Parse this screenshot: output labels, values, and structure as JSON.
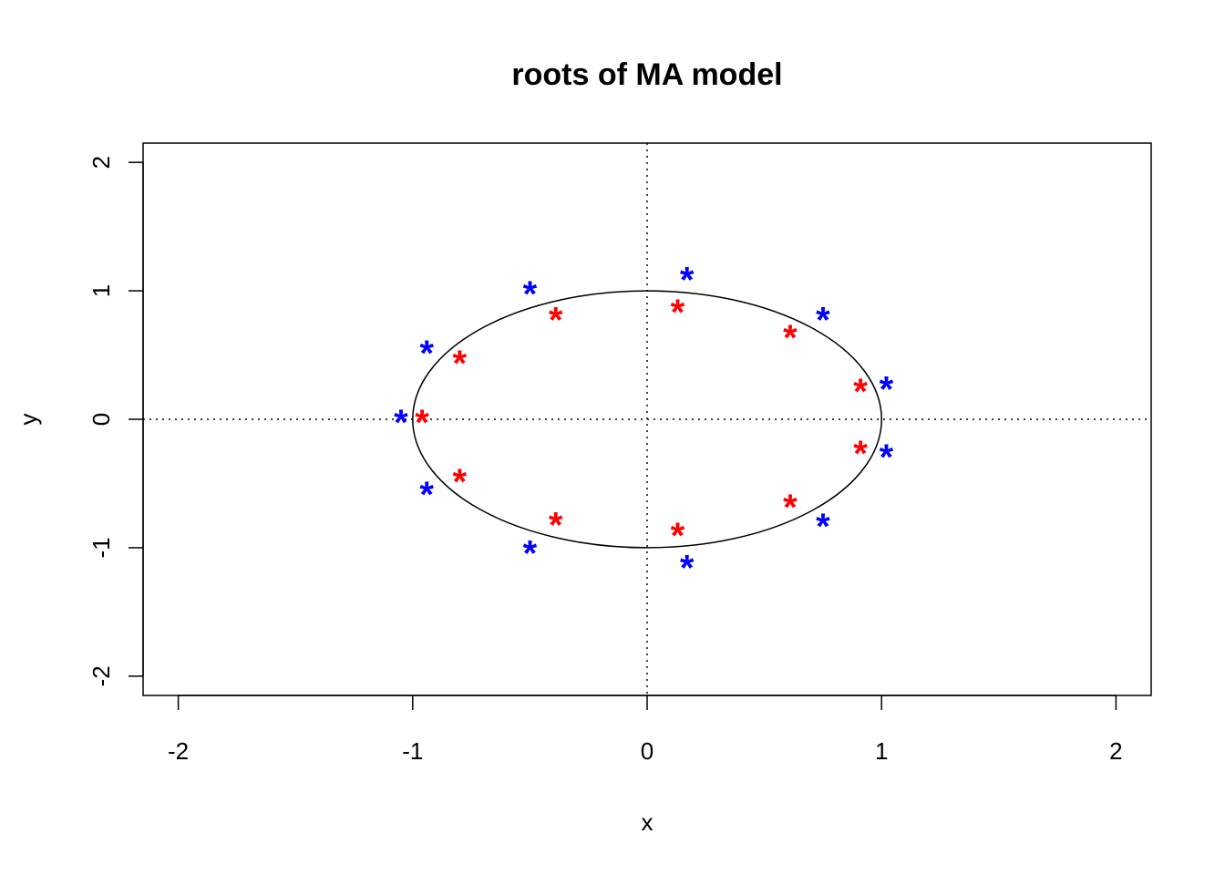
{
  "chart_data": {
    "type": "scatter",
    "title": "roots of MA model",
    "xlabel": "x",
    "ylabel": "y",
    "xlim": [
      -2.15,
      2.15
    ],
    "ylim": [
      -2.15,
      2.15
    ],
    "x_ticks": [
      -2,
      -1,
      0,
      1,
      2
    ],
    "y_ticks": [
      -2,
      -1,
      0,
      1,
      2
    ],
    "x_tick_labels": [
      "-2",
      "-1",
      "0",
      "1",
      "2"
    ],
    "y_tick_labels": [
      "-2",
      "-1",
      "0",
      "1",
      "2"
    ],
    "grid": false,
    "reference_lines": [
      {
        "orientation": "vertical",
        "value": 0,
        "style": "dotted"
      },
      {
        "orientation": "horizontal",
        "value": 0,
        "style": "dotted"
      }
    ],
    "unit_circle": {
      "radius": 1,
      "color": "#000000"
    },
    "marker": "*",
    "series": [
      {
        "color": "#ff0000",
        "points": [
          {
            "x": -0.96,
            "y": 0.0
          },
          {
            "x": -0.8,
            "y": 0.46
          },
          {
            "x": -0.8,
            "y": -0.46
          },
          {
            "x": -0.39,
            "y": 0.8
          },
          {
            "x": -0.39,
            "y": -0.8
          },
          {
            "x": 0.13,
            "y": 0.86
          },
          {
            "x": 0.13,
            "y": -0.88
          },
          {
            "x": 0.61,
            "y": 0.66
          },
          {
            "x": 0.61,
            "y": -0.66
          },
          {
            "x": 0.91,
            "y": 0.24
          },
          {
            "x": 0.91,
            "y": -0.24
          }
        ]
      },
      {
        "color": "#0000ff",
        "points": [
          {
            "x": -1.05,
            "y": 0.0
          },
          {
            "x": -0.94,
            "y": 0.54
          },
          {
            "x": -0.94,
            "y": -0.56
          },
          {
            "x": -0.5,
            "y": 1.0
          },
          {
            "x": -0.5,
            "y": -1.02
          },
          {
            "x": 0.17,
            "y": 1.11
          },
          {
            "x": 0.17,
            "y": -1.13
          },
          {
            "x": 0.75,
            "y": 0.8
          },
          {
            "x": 0.75,
            "y": -0.81
          },
          {
            "x": 1.02,
            "y": 0.26
          },
          {
            "x": 1.02,
            "y": -0.27
          }
        ]
      }
    ]
  }
}
